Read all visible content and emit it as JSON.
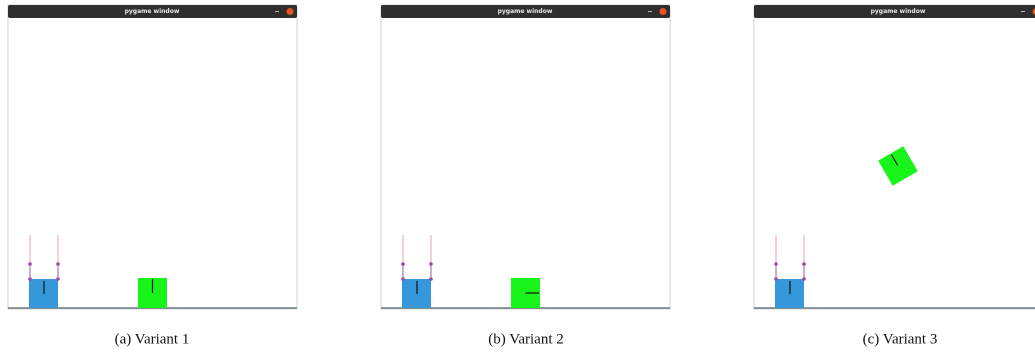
{
  "panels": [
    {
      "window_title": "pygame window",
      "caption": "(a) Variant 1"
    },
    {
      "window_title": "pygame window",
      "caption": "(b) Variant 2"
    },
    {
      "window_title": "pygame window",
      "caption": "(c) Variant 3"
    }
  ]
}
